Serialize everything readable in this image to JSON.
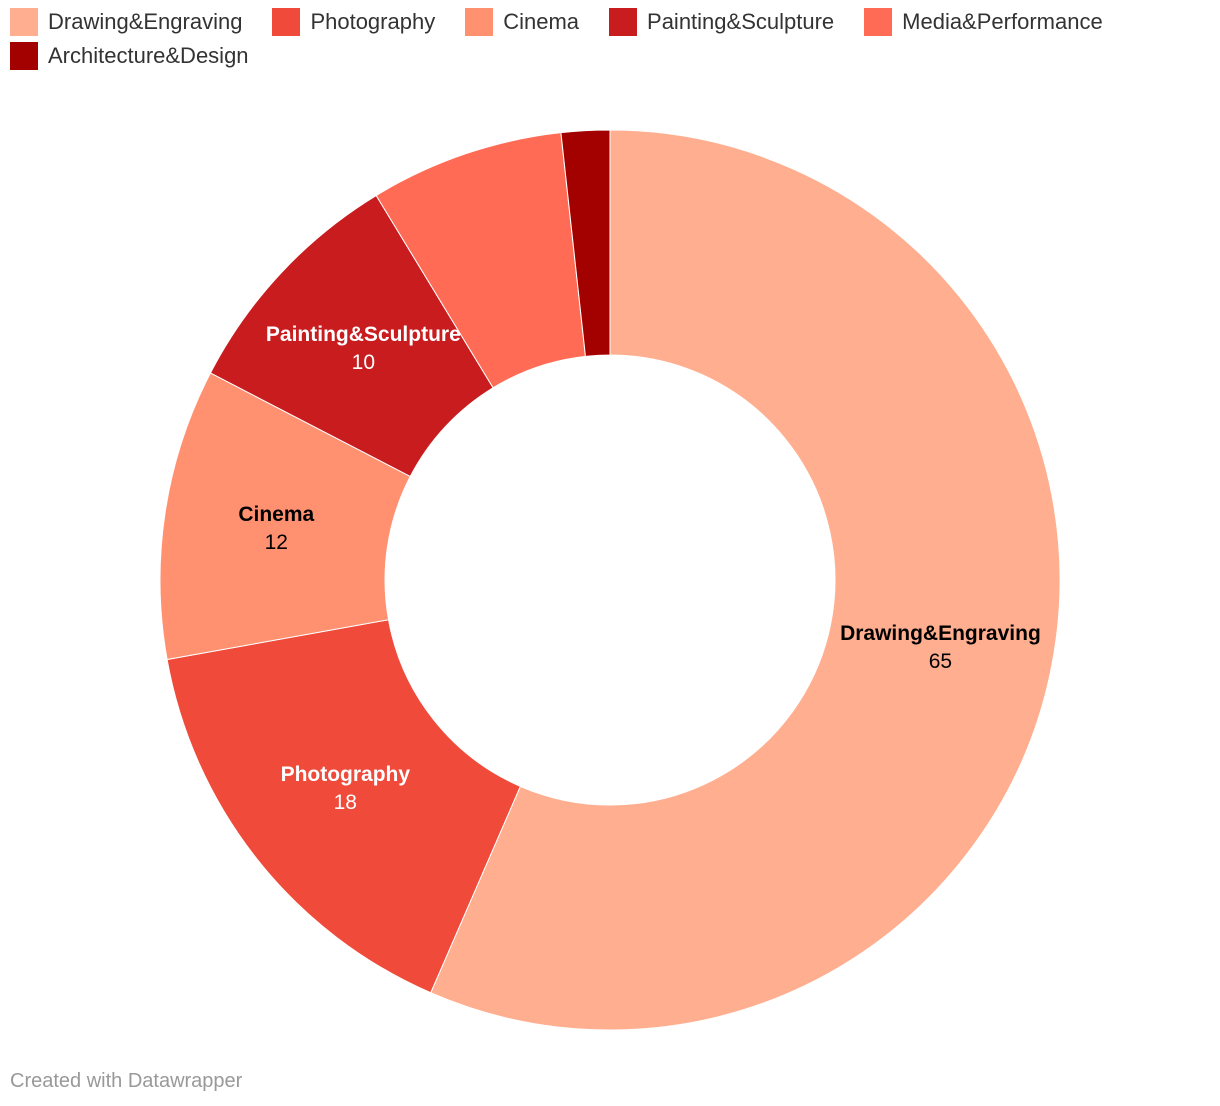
{
  "chart_data": {
    "type": "donut",
    "categories": [
      "Drawing&Engraving",
      "Photography",
      "Cinema",
      "Painting&Sculpture",
      "Media&Performance",
      "Architecture&Design"
    ],
    "values": [
      65,
      18,
      12,
      10,
      8,
      2
    ],
    "colors": [
      "#ffae8f",
      "#ef4a3a",
      "#ff9171",
      "#c81c1f",
      "#ff6b55",
      "#a30000"
    ],
    "footer": "Created with Datawrapper"
  }
}
